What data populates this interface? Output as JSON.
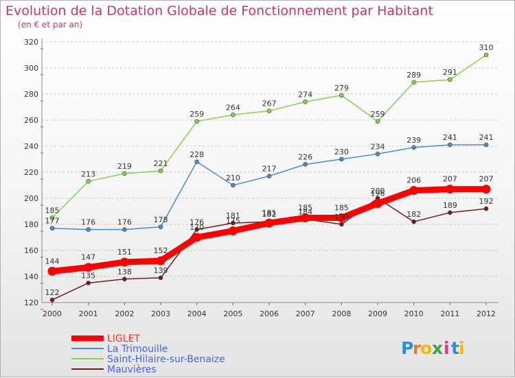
{
  "chart_data": {
    "type": "line",
    "title": "Evolution de la Dotation Globale de Fonctionnement par Habitant",
    "subtitle": "(en € et par an)",
    "categories": [
      "2000",
      "2001",
      "2002",
      "2003",
      "2004",
      "2005",
      "2006",
      "2007",
      "2008",
      "2009",
      "2010",
      "2011",
      "2012"
    ],
    "ylim": [
      120,
      320
    ],
    "yticks": [
      120,
      140,
      160,
      180,
      200,
      220,
      240,
      260,
      280,
      300,
      320
    ],
    "grid": "horizontal dashed",
    "legend_position": "bottom-left",
    "series": [
      {
        "name": "LIGLET",
        "color": "#ff0000",
        "values": [
          144,
          147,
          151,
          152,
          170,
          175,
          181,
          185,
          185,
          196,
          206,
          207,
          207
        ],
        "labels": [
          "144",
          "147",
          "151",
          "152",
          "170",
          "175",
          "181",
          "185",
          "185",
          "196",
          "206",
          "207",
          "207"
        ]
      },
      {
        "name": "La Trimouille",
        "color": "#4a8bcc",
        "values": [
          177,
          176,
          176,
          178,
          228,
          210,
          217,
          226,
          230,
          234,
          239,
          241,
          241
        ],
        "labels": [
          "177",
          "176",
          "176",
          "178",
          "228",
          "210",
          "217",
          "226",
          "230",
          "234",
          "239",
          "241",
          "241"
        ]
      },
      {
        "name": "Saint-Hilaire-sur-Benaize",
        "color": "#88d04a",
        "values": [
          185,
          213,
          219,
          221,
          259,
          264,
          267,
          274,
          279,
          259,
          289,
          291,
          310
        ],
        "labels": [
          "185",
          "213",
          "219",
          "221",
          "259",
          "264",
          "267",
          "274",
          "279",
          "259",
          "289",
          "291",
          "310"
        ]
      },
      {
        "name": "Mauvières",
        "color": "#6b1e1e",
        "values": [
          122,
          135,
          138,
          139,
          176,
          181,
          182,
          184,
          180,
          200,
          182,
          189,
          192
        ],
        "labels": [
          "122",
          "135",
          "138",
          "139",
          "176",
          "181",
          "182",
          "184",
          "180",
          "200",
          "182",
          "189",
          "192"
        ]
      }
    ]
  },
  "logo": {
    "letters": [
      "P",
      "r",
      "o",
      "x",
      "i",
      "t",
      "i"
    ],
    "colors": [
      "#2b8fd8",
      "#e87c1e",
      "#f5b700",
      "#3aa640",
      "#d83b8a",
      "#2b8fd8",
      "#f5b700"
    ]
  }
}
